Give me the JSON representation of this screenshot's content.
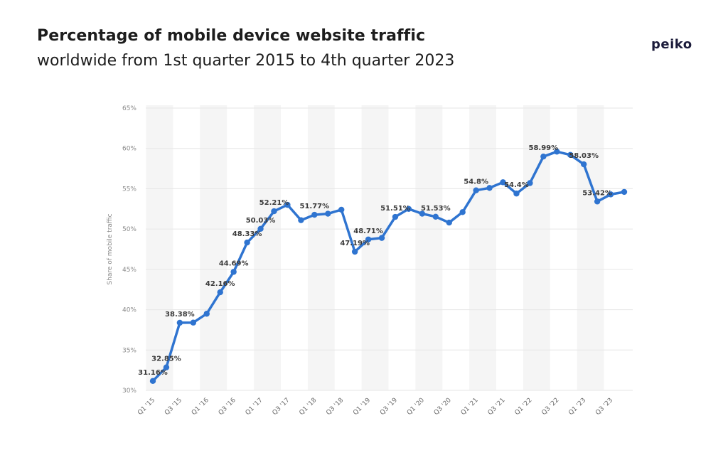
{
  "header": {
    "title": "Percentage of mobile device website traffic",
    "subtitle": "worldwide from 1st quarter 2015 to 4th quarter 2023",
    "brand": "peiko"
  },
  "colors": {
    "line": "#2f74d0",
    "grid": "#e6e6e6",
    "band": "#f5f5f5"
  },
  "chart_data": {
    "type": "line",
    "title": "Percentage of mobile device website traffic worldwide from 1st quarter 2015 to 4th quarter 2023",
    "xlabel": "",
    "ylabel": "Share of mobile traffic",
    "ylim": [
      30,
      65
    ],
    "yticks": [
      "30%",
      "35%",
      "40%",
      "45%",
      "50%",
      "55%",
      "60%",
      "65%"
    ],
    "grid": true,
    "categories": [
      "Q1 '15",
      "Q2 '15",
      "Q3 '15",
      "Q4 '15",
      "Q1 '16",
      "Q2 '16",
      "Q3 '16",
      "Q4 '16",
      "Q1 '17",
      "Q2 '17",
      "Q3 '17",
      "Q4 '17",
      "Q1 '18",
      "Q2 '18",
      "Q3 '18",
      "Q4 '18",
      "Q1 '19",
      "Q2 '19",
      "Q3 '19",
      "Q4 '19",
      "Q1 '20",
      "Q2 '20",
      "Q3 '20",
      "Q4 '20",
      "Q1 '21",
      "Q2 '21",
      "Q3 '21",
      "Q4 '21",
      "Q1 '22",
      "Q2 '22",
      "Q3 '22",
      "Q4 '22",
      "Q1 '23",
      "Q2 '23",
      "Q3 '23",
      "Q4 '23"
    ],
    "xtick_labels": [
      "Q1 '15",
      "Q3 '15",
      "Q1 '16",
      "Q3 '16",
      "Q1 '17",
      "Q3 '17",
      "Q1 '18",
      "Q3 '18",
      "Q1 '19",
      "Q3 '19",
      "Q1 '20",
      "Q3 '20",
      "Q1 '21",
      "Q3 '21",
      "Q1 '22",
      "Q3 '22",
      "Q1 '23",
      "Q3 '23"
    ],
    "series": [
      {
        "name": "Share of mobile traffic",
        "values": [
          31.16,
          32.85,
          38.38,
          38.4,
          39.5,
          42.16,
          44.69,
          48.33,
          50.03,
          52.21,
          53.0,
          51.1,
          51.77,
          51.9,
          52.4,
          47.19,
          48.71,
          48.9,
          51.51,
          52.5,
          51.9,
          51.53,
          50.8,
          52.1,
          54.8,
          55.1,
          55.8,
          54.4,
          55.7,
          58.99,
          59.6,
          59.2,
          58.03,
          53.42,
          54.3,
          54.6
        ]
      }
    ],
    "data_labels": [
      {
        "index": 0,
        "text": "31.16%"
      },
      {
        "index": 1,
        "text": "32.85%"
      },
      {
        "index": 2,
        "text": "38.38%"
      },
      {
        "index": 5,
        "text": "42.16%"
      },
      {
        "index": 6,
        "text": "44.69%"
      },
      {
        "index": 7,
        "text": "48.33%"
      },
      {
        "index": 8,
        "text": "50.03%"
      },
      {
        "index": 9,
        "text": "52.21%"
      },
      {
        "index": 12,
        "text": "51.77%"
      },
      {
        "index": 15,
        "text": "47.19%"
      },
      {
        "index": 16,
        "text": "48.71%"
      },
      {
        "index": 18,
        "text": "51.51%"
      },
      {
        "index": 21,
        "text": "51.53%"
      },
      {
        "index": 24,
        "text": "54.8%"
      },
      {
        "index": 27,
        "text": "54.4%"
      },
      {
        "index": 29,
        "text": "58.99%"
      },
      {
        "index": 32,
        "text": "58.03%"
      },
      {
        "index": 33,
        "text": "53.42%"
      }
    ]
  }
}
